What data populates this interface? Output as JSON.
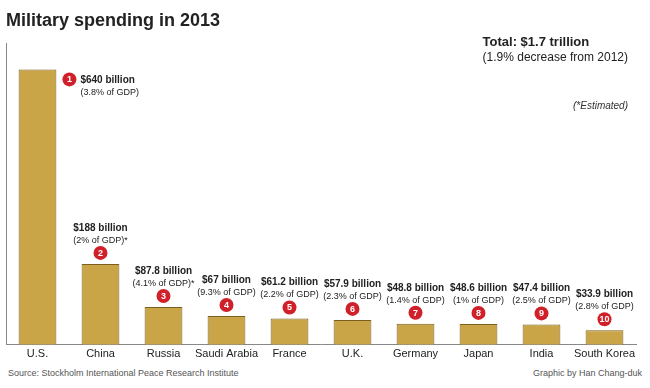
{
  "chart_data": {
    "type": "bar",
    "title": "Military spending in 2013",
    "categories": [
      "U.S.",
      "China",
      "Russia",
      "Saudi Arabia",
      "France",
      "U.K.",
      "Germany",
      "Japan",
      "India",
      "South Korea"
    ],
    "values": [
      640,
      188,
      87.8,
      67,
      61.2,
      57.9,
      48.8,
      48.6,
      47.4,
      33.9
    ],
    "value_labels": [
      "$640 billion",
      "$188 billion",
      "$87.8 billion",
      "$67 billion",
      "$61.2 billion",
      "$57.9 billion",
      "$48.8 billion",
      "$48.6 billion",
      "$47.4 billion",
      "$33.9 billion"
    ],
    "gdp_labels": [
      "(3.8% of GDP)",
      "(2% of GDP)*",
      "(4.1% of GDP)*",
      "(9.3% of GDP)",
      "(2.2% of GDP)",
      "(2.3% of GDP)",
      "(1.4% of GDP)",
      "(1% of GDP)",
      "(2.5% of GDP)",
      "(2.8% of GDP)"
    ],
    "ranks": [
      1,
      2,
      3,
      4,
      5,
      6,
      7,
      8,
      9,
      10
    ],
    "color": "#c9a548",
    "ylim": [
      0,
      700
    ],
    "grid": false,
    "tick_labels": "x",
    "data_labels": true
  },
  "annotations": {
    "total": "Total: $1.7 trillion",
    "total_note": "(1.9% decrease from 2012)",
    "estimated_note": "(*Estimated)",
    "source": "Source: Stockholm International Peace Research Institute",
    "credit": "Graphic by Han Chang-duk"
  }
}
